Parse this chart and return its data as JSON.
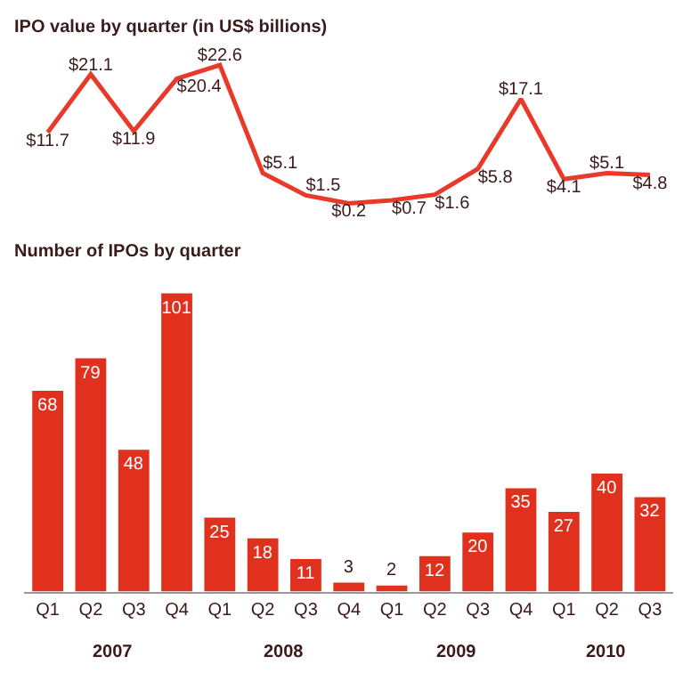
{
  "chart_data": [
    {
      "type": "line",
      "title": "IPO value by quarter (in US$ billions)",
      "categories": [
        null,
        null,
        null,
        null,
        null,
        null,
        null,
        null,
        null,
        null,
        null,
        null,
        null,
        null,
        null
      ],
      "tick_labels": false,
      "marker": "none",
      "series": [
        {
          "color": "#e8392a",
          "values": [
            11.7,
            21.1,
            11.9,
            20.4,
            22.6,
            5.1,
            1.5,
            0.2,
            0.7,
            1.6,
            5.8,
            17.1,
            4.1,
            5.1,
            4.8
          ],
          "value_labels": [
            "$11.7",
            "$21.1",
            "$11.9",
            "$20.4",
            "$22.6",
            "$5.1",
            "$1.5",
            "$0.2",
            "$0.7",
            "$1.6",
            "$5.8",
            "$17.1",
            "$4.1",
            "$5.1",
            "$4.8"
          ]
        }
      ]
    },
    {
      "type": "bar",
      "title": "Number of IPOs by quarter",
      "categories": [
        "Q1",
        "Q2",
        "Q3",
        "Q4",
        "Q1",
        "Q2",
        "Q3",
        "Q4",
        "Q1",
        "Q2",
        "Q3",
        "Q4",
        "Q1",
        "Q2",
        "Q3"
      ],
      "tick_labels": "x",
      "data_labels": true,
      "series": [
        {
          "color": "#e0301e",
          "values": [
            68,
            79,
            48,
            101,
            25,
            18,
            11,
            3,
            2,
            12,
            20,
            35,
            27,
            40,
            32
          ]
        }
      ],
      "annotations": [
        "2007",
        "2008",
        "2009",
        "2010"
      ]
    }
  ]
}
